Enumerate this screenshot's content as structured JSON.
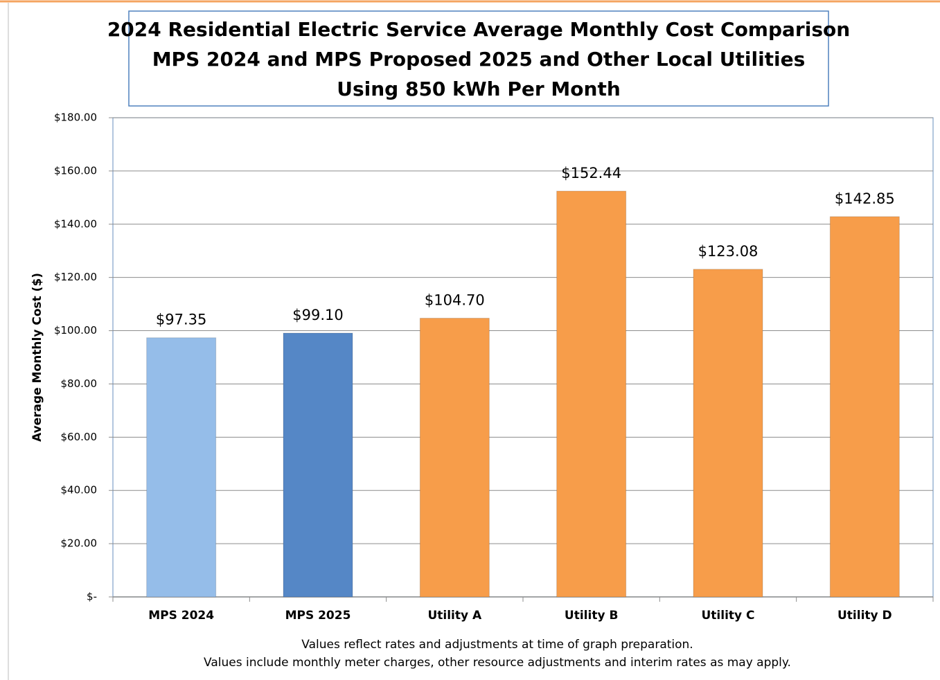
{
  "chart_data": {
    "type": "bar",
    "title": [
      "2024 Residential Electric Service Average Monthly Cost Comparison",
      "MPS 2024 and MPS Proposed 2025 and Other Local Utilities",
      "Using 850 kWh Per Month"
    ],
    "y_label": "Average Monthly Cost ($)",
    "categories": [
      "MPS 2024",
      "MPS 2025",
      "Utility A",
      "Utility B",
      "Utility C",
      "Utility D"
    ],
    "values": [
      97.35,
      99.1,
      104.7,
      152.44,
      123.08,
      142.85
    ],
    "value_labels": [
      "$97.35",
      "$99.10",
      "$104.70",
      "$152.44",
      "$123.08",
      "$142.85"
    ],
    "colors": [
      "#95bde9",
      "#5587c6",
      "#f79d4a",
      "#f79d4a",
      "#f79d4a",
      "#f79d4a"
    ],
    "ylim": [
      0,
      180
    ],
    "yticks": [
      {
        "value": 0,
        "label": "$-"
      },
      {
        "value": 20,
        "label": "$20.00"
      },
      {
        "value": 40,
        "label": "$40.00"
      },
      {
        "value": 60,
        "label": "$60.00"
      },
      {
        "value": 80,
        "label": "$80.00"
      },
      {
        "value": 100,
        "label": "$100.00"
      },
      {
        "value": 120,
        "label": "$120.00"
      },
      {
        "value": 140,
        "label": "$140.00"
      },
      {
        "value": 160,
        "label": "$160.00"
      },
      {
        "value": 180,
        "label": "$180.00"
      }
    ],
    "grid": true,
    "notes": [
      "Values reflect rates  and adjustments at time of graph preparation.",
      "Values include monthly meter charges, other resource adjustments and interim rates as may apply."
    ]
  }
}
